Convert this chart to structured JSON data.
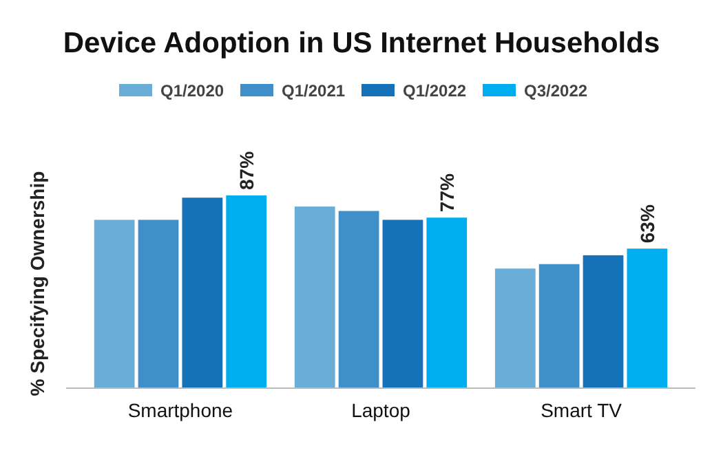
{
  "chart_data": {
    "type": "bar",
    "title": "Device Adoption in US Internet Households",
    "ylabel": "% Specifying Ownership",
    "categories": [
      "Smartphone",
      "Laptop",
      "Smart TV"
    ],
    "series": [
      {
        "name": "Q1/2020",
        "color": "#6aaed8",
        "values": [
          76,
          82,
          54
        ]
      },
      {
        "name": "Q1/2021",
        "color": "#3f8fcb",
        "values": [
          76,
          80,
          56
        ]
      },
      {
        "name": "Q1/2022",
        "color": "#1571b8",
        "values": [
          86,
          76,
          60
        ]
      },
      {
        "name": "Q3/2022",
        "color": "#00aeef",
        "values": [
          87,
          77,
          63
        ],
        "value_labels": [
          "87%",
          "77%",
          "63%"
        ]
      }
    ],
    "legend": "top"
  }
}
